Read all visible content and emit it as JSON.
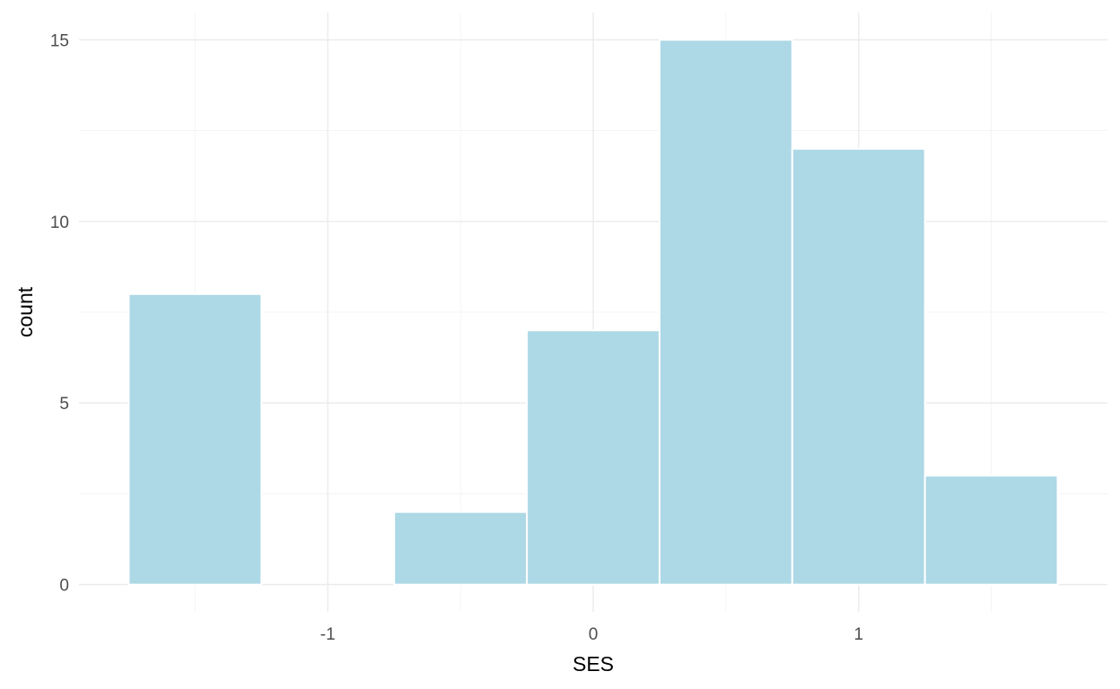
{
  "chart_data": {
    "type": "bar",
    "title": "",
    "xlabel": "SES",
    "ylabel": "count",
    "bin_width": 0.5,
    "bins": [
      {
        "x_start": -1.75,
        "x_end": -1.25,
        "count": 8
      },
      {
        "x_start": -1.25,
        "x_end": -0.75,
        "count": 0
      },
      {
        "x_start": -0.75,
        "x_end": -0.25,
        "count": 2
      },
      {
        "x_start": -0.25,
        "x_end": 0.25,
        "count": 7
      },
      {
        "x_start": 0.25,
        "x_end": 0.75,
        "count": 15
      },
      {
        "x_start": 0.75,
        "x_end": 1.25,
        "count": 12
      },
      {
        "x_start": 1.25,
        "x_end": 1.75,
        "count": 3
      }
    ],
    "xlim": [
      -1.9375,
      1.9375
    ],
    "ylim": [
      -0.75,
      15.75
    ],
    "x_ticks": [
      -1,
      0,
      1
    ],
    "x_tick_labels": [
      "-1",
      "0",
      "1"
    ],
    "y_ticks": [
      0,
      5,
      10,
      15
    ],
    "y_tick_labels": [
      "0",
      "5",
      "10",
      "15"
    ],
    "x_minor_ticks": [
      -1.5,
      -0.5,
      0.5,
      1.5
    ],
    "y_minor_ticks": [
      2.5,
      7.5,
      12.5
    ],
    "grid": true,
    "legend": "none",
    "colors": {
      "fill": "#add8e6",
      "outline": "#ffffff"
    }
  }
}
